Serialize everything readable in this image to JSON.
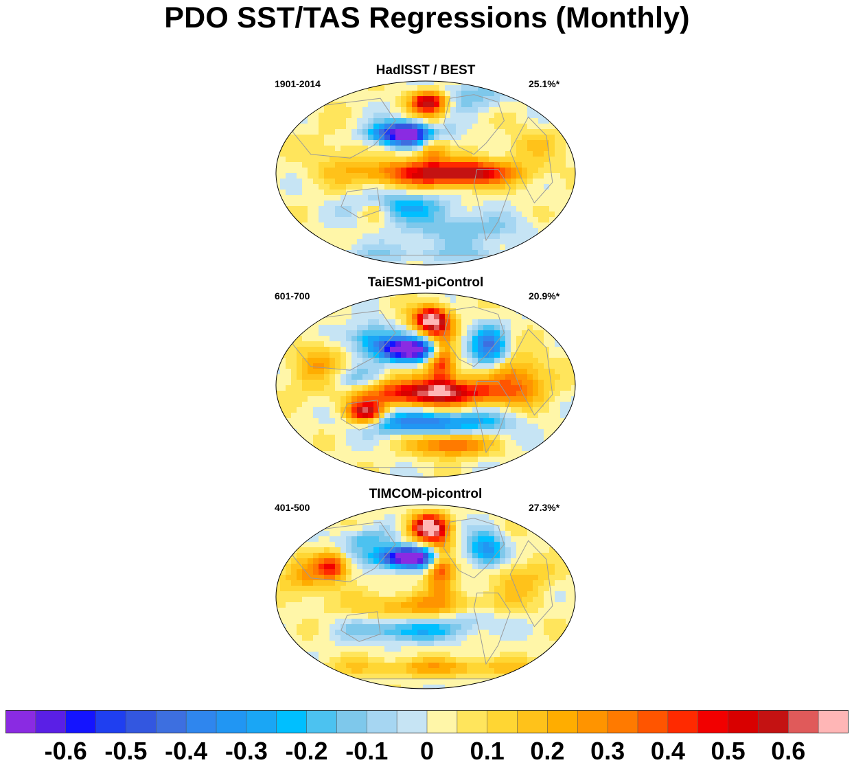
{
  "figure": {
    "title": "PDO SST/TAS Regressions (Monthly)"
  },
  "panels": [
    {
      "title": "HadISST / BEST",
      "period": "1901-2014",
      "variance": "25.1%*"
    },
    {
      "title": "TaiESM1-piControl",
      "period": "601-700",
      "variance": "20.9%*"
    },
    {
      "title": "TIMCOM-picontrol",
      "period": "401-500",
      "variance": "27.3%*"
    }
  ],
  "colorbar": {
    "colors": [
      "#8a2be2",
      "#5a1fe6",
      "#1414ff",
      "#1f3ff0",
      "#3357e0",
      "#3d6fe0",
      "#2f86ee",
      "#2196f3",
      "#1aa6f5",
      "#00bfff",
      "#4cc2f0",
      "#7ec8eb",
      "#a6d6f2",
      "#c6e4f4",
      "#fff6a8",
      "#ffe55c",
      "#ffd633",
      "#ffc21a",
      "#ffad00",
      "#ff9400",
      "#ff7a00",
      "#ff5500",
      "#ff2a00",
      "#f20000",
      "#d90000",
      "#c41212",
      "#e05a5a",
      "#ffb6b6"
    ],
    "tick_labels": [
      "-0.6",
      "-0.5",
      "-0.4",
      "-0.3",
      "-0.2",
      "-0.1",
      "0",
      "0.1",
      "0.2",
      "0.3",
      "0.4",
      "0.5",
      "0.6"
    ]
  },
  "chart_data": [
    {
      "type": "heatmap",
      "title": "HadISST / BEST",
      "annotations": [
        "1901-2014",
        "25.1%*"
      ],
      "colorbar_range": [
        -0.65,
        0.65
      ],
      "features": [
        {
          "name": "north-pacific-cold-pool",
          "value": -0.6
        },
        {
          "name": "alaska-warm",
          "value": 0.6
        },
        {
          "name": "tropical-pacific-warm",
          "value": 0.35
        },
        {
          "name": "pacific-horseshoe-cool",
          "value": -0.2
        },
        {
          "name": "north-america-west-coast-warm",
          "value": 0.3
        },
        {
          "name": "southern-ocean-cool",
          "value": -0.1
        }
      ]
    },
    {
      "type": "heatmap",
      "title": "TaiESM1-piControl",
      "annotations": [
        "601-700",
        "20.9%*"
      ],
      "colorbar_range": [
        -0.65,
        0.65
      ],
      "features": [
        {
          "name": "north-pacific-cold-pool",
          "value": -0.6
        },
        {
          "name": "alaska-warm",
          "value": 0.65
        },
        {
          "name": "tropical-pacific-warm",
          "value": 0.45
        },
        {
          "name": "pacific-horseshoe-cool",
          "value": -0.35
        },
        {
          "name": "australia-warm",
          "value": 0.45
        },
        {
          "name": "canada-cool",
          "value": -0.35
        },
        {
          "name": "south-pacific-warm",
          "value": 0.3
        }
      ]
    },
    {
      "type": "heatmap",
      "title": "TIMCOM-picontrol",
      "annotations": [
        "401-500",
        "27.3%*"
      ],
      "colorbar_range": [
        -0.65,
        0.65
      ],
      "features": [
        {
          "name": "north-pacific-cold-pool",
          "value": -0.6
        },
        {
          "name": "alaska-warm",
          "value": 0.65
        },
        {
          "name": "tropical-pacific-warm",
          "value": 0.2
        },
        {
          "name": "pacific-horseshoe-cool",
          "value": -0.2
        },
        {
          "name": "canada-cool",
          "value": -0.3
        },
        {
          "name": "india-warm",
          "value": 0.35
        }
      ]
    }
  ]
}
